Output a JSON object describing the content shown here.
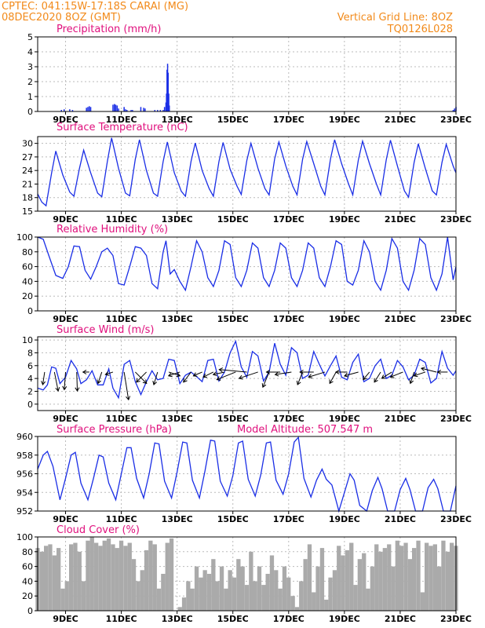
{
  "header": {
    "line1": "CPTEC:   041:15W-17:18S   CARAI (MG)",
    "line2": "08DEC2020 8OZ (GMT)",
    "right1": "Vertical Grid Line: 8OZ",
    "right2": "TQ0126L028"
  },
  "x_axis": {
    "ticks": [
      "9DEC",
      "11DEC",
      "13DEC",
      "15DEC",
      "17DEC",
      "19DEC",
      "21DEC",
      "23DEC"
    ]
  },
  "chart_data": [
    {
      "id": "precip",
      "type": "bar",
      "title": "Precipitation (mm/h)",
      "ylim": [
        0,
        5
      ],
      "yticks": [
        0,
        1,
        2,
        3,
        4,
        5
      ],
      "color": "#1a2ee6",
      "x": [
        8.85,
        8.95,
        9.15,
        9.25,
        9.75,
        9.8,
        9.85,
        9.9,
        10.7,
        10.75,
        10.8,
        10.85,
        10.9,
        11.1,
        11.15,
        11.2,
        11.35,
        11.4,
        11.7,
        11.8,
        11.85,
        12.2,
        12.3,
        12.4,
        12.5,
        12.55,
        12.6,
        12.62,
        12.64,
        12.66,
        12.68,
        12.7,
        12.72,
        22.9,
        22.95,
        23.0
      ],
      "values": [
        0.1,
        0.15,
        0.15,
        0.1,
        0.25,
        0.3,
        0.35,
        0.3,
        0.45,
        0.5,
        0.45,
        0.4,
        0.2,
        0.3,
        0.15,
        0.1,
        0.1,
        0.1,
        0.3,
        0.25,
        0.2,
        0.1,
        0.1,
        0.1,
        0.1,
        0.3,
        0.6,
        1.2,
        2.8,
        3.2,
        2.6,
        1.2,
        0.4,
        0.1,
        0.2,
        0.3
      ]
    },
    {
      "id": "temp",
      "type": "line",
      "title": "Surface Temperature (nC)",
      "ylim": [
        15,
        31.5
      ],
      "yticks": [
        15,
        18,
        21,
        24,
        27,
        30
      ],
      "color": "#1a2ee6",
      "x": [
        8.0,
        8.15,
        8.3,
        8.5,
        8.65,
        8.9,
        9.15,
        9.3,
        9.5,
        9.65,
        9.9,
        10.15,
        10.3,
        10.5,
        10.65,
        10.9,
        11.15,
        11.3,
        11.5,
        11.65,
        11.9,
        12.15,
        12.3,
        12.5,
        12.65,
        12.9,
        13.15,
        13.3,
        13.5,
        13.65,
        13.9,
        14.15,
        14.3,
        14.5,
        14.65,
        14.9,
        15.15,
        15.3,
        15.5,
        15.65,
        15.9,
        16.15,
        16.3,
        16.5,
        16.65,
        16.9,
        17.15,
        17.3,
        17.5,
        17.65,
        17.9,
        18.15,
        18.3,
        18.5,
        18.65,
        18.9,
        19.15,
        19.3,
        19.5,
        19.65,
        19.9,
        20.15,
        20.3,
        20.5,
        20.65,
        20.9,
        21.15,
        21.3,
        21.5,
        21.65,
        21.9,
        22.15,
        22.3,
        22.5,
        22.65,
        22.9,
        23.0
      ],
      "values": [
        18.8,
        17,
        16.2,
        23.5,
        28.3,
        23,
        19.2,
        18.3,
        24.5,
        28.5,
        23.5,
        19,
        18.2,
        26,
        31.2,
        24.5,
        19,
        18.4,
        26.5,
        30.8,
        24,
        19,
        18.3,
        26,
        30.3,
        23.5,
        19.4,
        18.3,
        26,
        30.1,
        24,
        20,
        18.3,
        26,
        30.2,
        24.3,
        20.5,
        18.7,
        26.2,
        30,
        24.5,
        20,
        18.6,
        26.6,
        30.3,
        25,
        20.5,
        18.6,
        26.5,
        30.4,
        25.5,
        20.5,
        18.6,
        26.5,
        30.8,
        25.5,
        21,
        18.6,
        26.3,
        30.5,
        25.5,
        21,
        18.6,
        26.4,
        30.7,
        25,
        19.5,
        18.1,
        25.8,
        29.9,
        24.5,
        19.5,
        18.6,
        25.8,
        29.8,
        25,
        23.5
      ]
    },
    {
      "id": "rh",
      "type": "line",
      "title": "Relative Humidity (%)",
      "ylim": [
        0,
        100
      ],
      "yticks": [
        0,
        20,
        40,
        60,
        80,
        100
      ],
      "color": "#1a2ee6",
      "x": [
        8.0,
        8.2,
        8.4,
        8.65,
        8.9,
        9.1,
        9.3,
        9.5,
        9.7,
        9.9,
        10.1,
        10.3,
        10.5,
        10.7,
        10.9,
        11.1,
        11.3,
        11.5,
        11.7,
        11.9,
        12.1,
        12.3,
        12.5,
        12.6,
        12.75,
        12.9,
        13.1,
        13.3,
        13.5,
        13.7,
        13.9,
        14.1,
        14.3,
        14.5,
        14.7,
        14.9,
        15.1,
        15.3,
        15.5,
        15.7,
        15.9,
        16.1,
        16.3,
        16.5,
        16.7,
        16.9,
        17.1,
        17.3,
        17.5,
        17.7,
        17.9,
        18.1,
        18.3,
        18.5,
        18.7,
        18.9,
        19.1,
        19.3,
        19.5,
        19.7,
        19.9,
        20.1,
        20.3,
        20.5,
        20.7,
        20.9,
        21.1,
        21.3,
        21.5,
        21.7,
        21.9,
        22.1,
        22.3,
        22.5,
        22.7,
        22.9,
        23.0
      ],
      "values": [
        100,
        97,
        75,
        48,
        44,
        60,
        88,
        87,
        55,
        43,
        60,
        80,
        85,
        75,
        37,
        35,
        60,
        87,
        85,
        75,
        37,
        30,
        80,
        95,
        50,
        56,
        40,
        28,
        60,
        95,
        80,
        45,
        33,
        55,
        95,
        90,
        45,
        33,
        55,
        92,
        85,
        45,
        33,
        55,
        92,
        85,
        45,
        33,
        55,
        92,
        85,
        45,
        33,
        60,
        95,
        90,
        40,
        35,
        55,
        95,
        80,
        40,
        28,
        55,
        98,
        85,
        40,
        28,
        55,
        98,
        90,
        45,
        28,
        50,
        100,
        42,
        60
      ]
    },
    {
      "id": "wind",
      "type": "line",
      "title": "Surface Wind (m/s)",
      "ylim": [
        -1,
        10.5
      ],
      "yticks": [
        0,
        2,
        4,
        6,
        8,
        10
      ],
      "color": "#1a2ee6",
      "x": [
        8.0,
        8.2,
        8.35,
        8.5,
        8.65,
        8.8,
        9.0,
        9.2,
        9.4,
        9.55,
        9.75,
        9.95,
        10.15,
        10.35,
        10.55,
        10.7,
        10.9,
        11.1,
        11.3,
        11.5,
        11.7,
        11.9,
        12.1,
        12.3,
        12.5,
        12.7,
        12.9,
        13.1,
        13.3,
        13.5,
        13.7,
        13.9,
        14.1,
        14.3,
        14.5,
        14.7,
        14.9,
        15.1,
        15.3,
        15.5,
        15.7,
        15.9,
        16.1,
        16.3,
        16.5,
        16.7,
        16.9,
        17.1,
        17.3,
        17.5,
        17.7,
        17.9,
        18.1,
        18.3,
        18.5,
        18.7,
        18.9,
        19.1,
        19.3,
        19.5,
        19.7,
        19.9,
        20.1,
        20.3,
        20.5,
        20.7,
        20.9,
        21.1,
        21.3,
        21.5,
        21.7,
        21.9,
        22.1,
        22.3,
        22.5,
        22.7,
        22.9,
        23.0
      ],
      "values": [
        2.5,
        2.2,
        3,
        5.8,
        5.6,
        3.2,
        4.2,
        6.8,
        5.5,
        3.2,
        3.8,
        5.2,
        3,
        3,
        5.5,
        2.5,
        1,
        6.2,
        6.8,
        3.5,
        1.5,
        3.5,
        5.2,
        3.8,
        4,
        7,
        6.8,
        3.2,
        4.5,
        5,
        4.3,
        3.5,
        6.8,
        7,
        3.6,
        5,
        8,
        9.8,
        5.8,
        4.2,
        8.2,
        7.5,
        3.6,
        5,
        9.5,
        6.2,
        4.5,
        8.8,
        8,
        4,
        4.5,
        8.2,
        6.2,
        4.4,
        6,
        7.5,
        4.2,
        3.8,
        6.5,
        7.8,
        3.5,
        4,
        6,
        7,
        4,
        4.5,
        6.8,
        5.8,
        3.8,
        4.5,
        7,
        6.5,
        3.3,
        4,
        8.2,
        5.6,
        4.5,
        5.2
      ]
    },
    {
      "id": "pressure",
      "type": "line",
      "title": "Surface Pressure (hPa)",
      "ylim": [
        952,
        960
      ],
      "yticks": [
        952,
        954,
        956,
        958,
        960
      ],
      "color": "#1a2ee6",
      "x": [
        8.0,
        8.2,
        8.35,
        8.55,
        8.8,
        9.0,
        9.2,
        9.35,
        9.55,
        9.8,
        10.0,
        10.2,
        10.35,
        10.55,
        10.8,
        11.0,
        11.2,
        11.35,
        11.55,
        11.8,
        12.0,
        12.2,
        12.35,
        12.55,
        12.8,
        13.0,
        13.2,
        13.35,
        13.55,
        13.8,
        14.0,
        14.2,
        14.35,
        14.55,
        14.8,
        15.0,
        15.2,
        15.35,
        15.55,
        15.8,
        16.0,
        16.2,
        16.35,
        16.55,
        16.8,
        17.0,
        17.2,
        17.35,
        17.55,
        17.8,
        18.0,
        18.2,
        18.35,
        18.55,
        18.8,
        19.0,
        19.2,
        19.35,
        19.55,
        19.8,
        20.0,
        20.2,
        20.35,
        20.55,
        20.8,
        21.0,
        21.2,
        21.35,
        21.55,
        21.8,
        22.0,
        22.2,
        22.35,
        22.55,
        22.8,
        23.0
      ],
      "values": [
        956.5,
        958,
        958.4,
        956.8,
        953.2,
        955.5,
        958,
        958.3,
        955,
        953.2,
        955.5,
        958,
        957.8,
        955,
        953.2,
        956,
        958.8,
        958.8,
        955.5,
        953.4,
        956,
        959.3,
        959.2,
        955.2,
        953.4,
        956.2,
        959.4,
        959.3,
        955.3,
        953.4,
        956.3,
        959.6,
        959.5,
        955.2,
        953.6,
        955.8,
        959.3,
        959.5,
        955.4,
        953.6,
        955.9,
        959.3,
        959.4,
        955.3,
        953.8,
        956,
        959.4,
        959.9,
        955.5,
        953.5,
        955.3,
        956.5,
        955.4,
        954.8,
        952,
        954,
        956,
        955.3,
        952.6,
        952,
        954.2,
        955.6,
        954.4,
        952,
        952,
        954.3,
        955.5,
        954.3,
        952,
        952,
        954.5,
        955.4,
        954.4,
        952,
        952,
        954.7
      ]
    },
    {
      "id": "cloud",
      "type": "bar",
      "title": "Cloud Cover (%)",
      "ylim": [
        0,
        100
      ],
      "yticks": [
        0,
        20,
        40,
        60,
        80,
        100
      ],
      "color": "#aaaaaa",
      "x": [
        8.0,
        8.15,
        8.3,
        8.45,
        8.6,
        8.75,
        8.9,
        9.05,
        9.2,
        9.35,
        9.5,
        9.65,
        9.8,
        9.95,
        10.1,
        10.25,
        10.4,
        10.55,
        10.7,
        10.85,
        11.0,
        11.15,
        11.3,
        11.45,
        11.6,
        11.75,
        11.9,
        12.05,
        12.2,
        12.35,
        12.5,
        12.65,
        12.8,
        12.95,
        13.1,
        13.25,
        13.4,
        13.55,
        13.7,
        13.85,
        14.0,
        14.15,
        14.3,
        14.45,
        14.6,
        14.75,
        14.9,
        15.05,
        15.2,
        15.35,
        15.5,
        15.65,
        15.8,
        15.95,
        16.1,
        16.25,
        16.4,
        16.55,
        16.7,
        16.85,
        17.0,
        17.15,
        17.3,
        17.45,
        17.6,
        17.75,
        17.9,
        18.05,
        18.2,
        18.35,
        18.5,
        18.65,
        18.8,
        18.95,
        19.1,
        19.25,
        19.4,
        19.55,
        19.7,
        19.85,
        20.0,
        20.15,
        20.3,
        20.45,
        20.6,
        20.75,
        20.9,
        21.05,
        21.2,
        21.35,
        21.5,
        21.65,
        21.8,
        21.95,
        22.1,
        22.25,
        22.4,
        22.55,
        22.7,
        22.85,
        23.0
      ],
      "values": [
        85,
        80,
        88,
        90,
        75,
        85,
        30,
        40,
        90,
        92,
        80,
        40,
        95,
        100,
        92,
        88,
        95,
        98,
        90,
        85,
        95,
        88,
        92,
        70,
        40,
        55,
        82,
        95,
        90,
        30,
        50,
        92,
        98,
        0,
        5,
        18,
        40,
        30,
        60,
        45,
        55,
        50,
        70,
        40,
        60,
        30,
        55,
        45,
        70,
        60,
        35,
        80,
        40,
        60,
        35,
        50,
        75,
        55,
        30,
        60,
        45,
        20,
        5,
        40,
        70,
        90,
        25,
        60,
        85,
        15,
        45,
        55,
        88,
        75,
        82,
        92,
        35,
        70,
        78,
        30,
        60,
        90,
        80,
        85,
        90,
        60,
        95,
        88,
        92,
        70,
        85,
        95,
        25,
        92,
        88,
        90,
        60,
        95,
        80,
        92,
        88
      ]
    }
  ],
  "wind_vectors": {
    "color": "#000000",
    "x": [
      8.25,
      8.6,
      9.0,
      9.4,
      9.85,
      10.3,
      10.7,
      11.1,
      11.5,
      11.9,
      12.3,
      12.7,
      13.1,
      13.5,
      13.9,
      14.3,
      14.7,
      15.1,
      15.5,
      15.9,
      16.3,
      16.7,
      17.1,
      17.5,
      17.9,
      18.3,
      18.7,
      19.1,
      19.5,
      19.9,
      20.3,
      20.7,
      21.1,
      21.5,
      21.9,
      22.3,
      22.7
    ],
    "u": [
      -0.15,
      0.3,
      -0.1,
      0.05,
      -0.5,
      -0.3,
      -0.6,
      0.35,
      0.9,
      -0.8,
      -0.3,
      0.9,
      -0.9,
      -0.6,
      -0.7,
      -0.8,
      -0.9,
      -1.5,
      -2.2,
      -1.5,
      -0.5,
      -1.1,
      -1.3,
      -0.4,
      -1.1,
      -1.3,
      -0.5,
      -0.9,
      -1.1,
      -0.5,
      -0.5,
      -0.8,
      -1.0,
      -0.3,
      -0.9,
      -1.2,
      -0.8
    ],
    "v": [
      -1.0,
      -1.5,
      -1.4,
      -1.5,
      0.0,
      -0.9,
      -0.2,
      -2.2,
      -0.9,
      -0.8,
      -1.0,
      -0.3,
      -0.3,
      -0.8,
      -0.3,
      -0.4,
      -0.2,
      -0.6,
      0.2,
      -0.5,
      -1.2,
      0.0,
      -0.2,
      -1.0,
      0.0,
      -0.4,
      -0.9,
      0.0,
      -0.3,
      -0.6,
      -0.8,
      -0.5,
      -0.4,
      -0.9,
      -0.3,
      0.3,
      0.0
    ]
  },
  "model_altitude_label": "Model Altitude: 507.547 m"
}
